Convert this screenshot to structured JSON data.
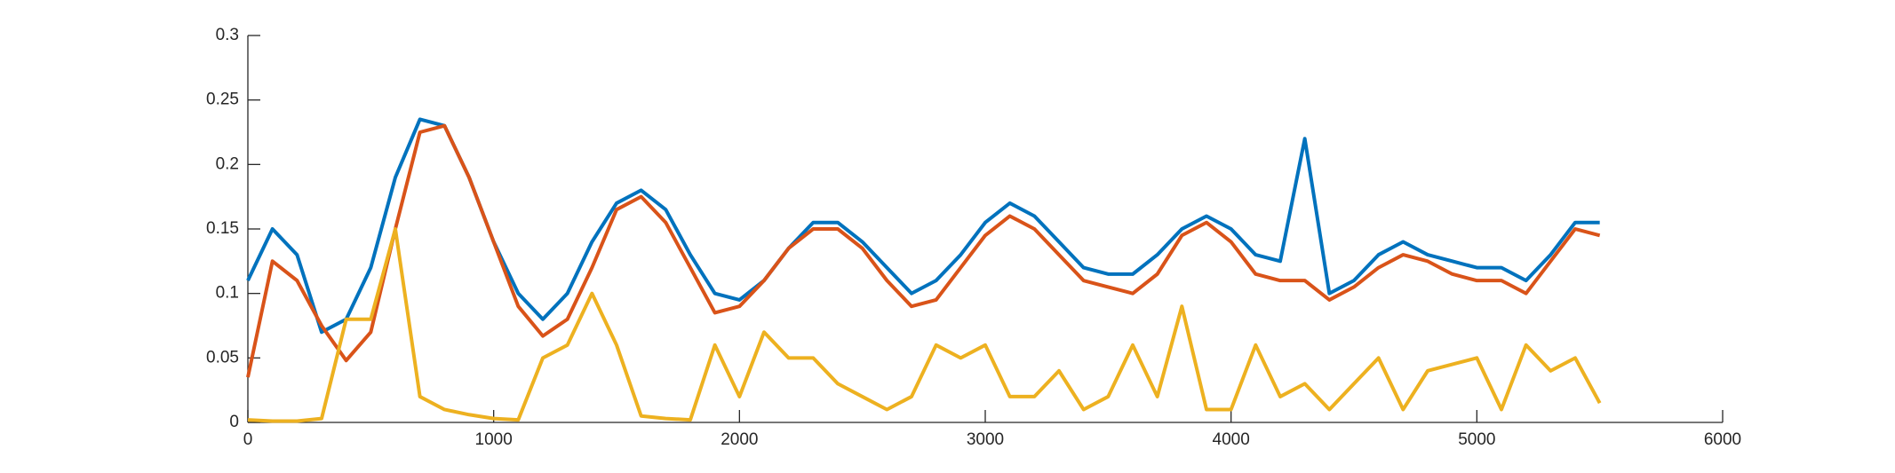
{
  "chart_data": {
    "type": "line",
    "x": [
      0,
      100,
      200,
      300,
      400,
      500,
      600,
      700,
      800,
      900,
      1000,
      1100,
      1200,
      1300,
      1400,
      1500,
      1600,
      1700,
      1800,
      1900,
      2000,
      2100,
      2200,
      2300,
      2400,
      2500,
      2600,
      2700,
      2800,
      2900,
      3000,
      3100,
      3200,
      3300,
      3400,
      3500,
      3600,
      3700,
      3800,
      3900,
      4000,
      4100,
      4200,
      4300,
      4400,
      4500,
      4600,
      4700,
      4800,
      4900,
      5000,
      5100,
      5200,
      5300,
      5400,
      5500
    ],
    "series": [
      {
        "color": "#0072BD",
        "values": [
          0.11,
          0.15,
          0.13,
          0.07,
          0.08,
          0.12,
          0.19,
          0.235,
          0.23,
          0.19,
          0.14,
          0.1,
          0.08,
          0.1,
          0.14,
          0.17,
          0.18,
          0.165,
          0.13,
          0.1,
          0.095,
          0.11,
          0.135,
          0.155,
          0.155,
          0.14,
          0.12,
          0.1,
          0.11,
          0.13,
          0.155,
          0.17,
          0.16,
          0.14,
          0.12,
          0.115,
          0.115,
          0.13,
          0.15,
          0.16,
          0.15,
          0.13,
          0.125,
          0.22,
          0.1,
          0.11,
          0.13,
          0.14,
          0.13,
          0.125,
          0.12,
          0.12,
          0.11,
          0.13,
          0.155,
          0.155
        ]
      },
      {
        "color": "#D95319",
        "values": [
          0.035,
          0.125,
          0.11,
          0.075,
          0.048,
          0.07,
          0.15,
          0.225,
          0.23,
          0.19,
          0.14,
          0.09,
          0.067,
          0.08,
          0.12,
          0.165,
          0.175,
          0.155,
          0.12,
          0.085,
          0.09,
          0.11,
          0.135,
          0.15,
          0.15,
          0.135,
          0.11,
          0.09,
          0.095,
          0.12,
          0.145,
          0.16,
          0.15,
          0.13,
          0.11,
          0.105,
          0.1,
          0.115,
          0.145,
          0.155,
          0.14,
          0.115,
          0.11,
          0.11,
          0.095,
          0.105,
          0.12,
          0.13,
          0.125,
          0.115,
          0.11,
          0.11,
          0.1,
          0.125,
          0.15,
          0.145
        ]
      },
      {
        "color": "#EDB120",
        "values": [
          0.002,
          0.001,
          0.001,
          0.003,
          0.08,
          0.08,
          0.15,
          0.02,
          0.01,
          0.006,
          0.003,
          0.002,
          0.05,
          0.06,
          0.1,
          0.06,
          0.005,
          0.003,
          0.002,
          0.06,
          0.02,
          0.07,
          0.05,
          0.05,
          0.03,
          0.02,
          0.01,
          0.02,
          0.06,
          0.05,
          0.06,
          0.02,
          0.02,
          0.04,
          0.01,
          0.02,
          0.06,
          0.02,
          0.09,
          0.01,
          0.01,
          0.06,
          0.02,
          0.03,
          0.01,
          0.03,
          0.05,
          0.01,
          0.04,
          0.045,
          0.05,
          0.01,
          0.06,
          0.04,
          0.05,
          0.015
        ]
      }
    ],
    "xlim": [
      0,
      6000
    ],
    "xticks": [
      0,
      1000,
      2000,
      3000,
      4000,
      5000,
      6000
    ],
    "ylim": [
      0,
      0.3
    ],
    "yticks": [
      0,
      0.05,
      0.1,
      0.15,
      0.2,
      0.25,
      0.3
    ]
  }
}
